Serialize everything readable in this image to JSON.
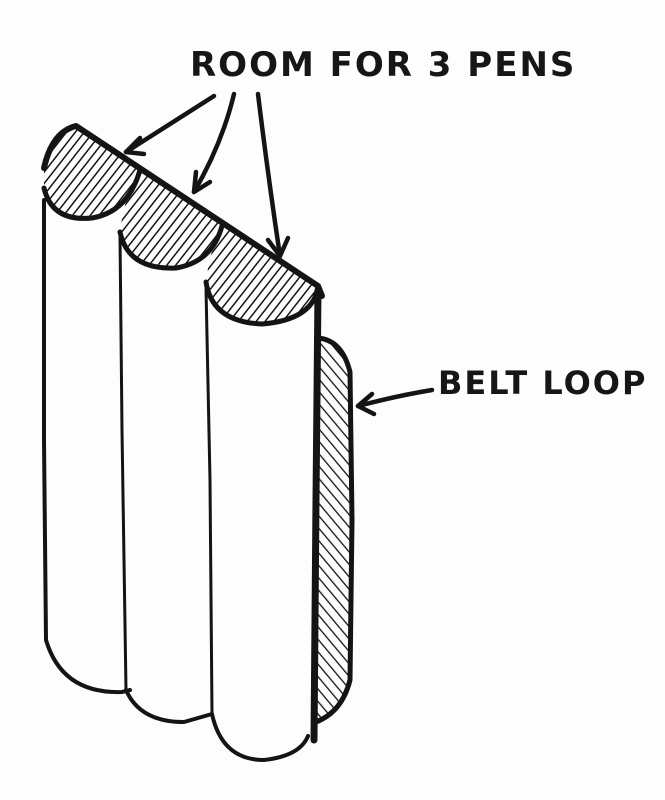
{
  "labels": {
    "pens": "ROOM FOR 3 PENS",
    "belt": "BELT LOOP"
  },
  "icons": [
    "arrow-icon",
    "pen-holder-icon",
    "belt-loop-icon"
  ],
  "colors": {
    "ink": "#141414",
    "paper": "#fdfdfd"
  }
}
